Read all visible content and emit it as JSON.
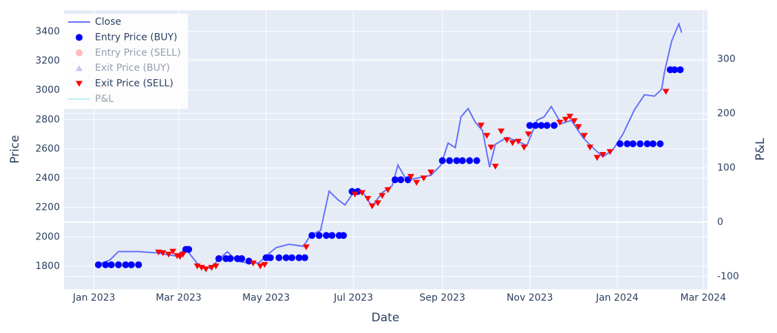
{
  "chart_data": {
    "type": "line",
    "x_label": "Date",
    "y_label": "Price",
    "y2_label": "P&L",
    "xlim": [
      "2022-12-11",
      "2024-03-04"
    ],
    "xticks": [
      {
        "value": "2023-01-01",
        "label": "Jan 2023"
      },
      {
        "value": "2023-03-01",
        "label": "Mar 2023"
      },
      {
        "value": "2023-05-01",
        "label": "May 2023"
      },
      {
        "value": "2023-07-01",
        "label": "Jul 2023"
      },
      {
        "value": "2023-09-01",
        "label": "Sep 2023"
      },
      {
        "value": "2023-11-01",
        "label": "Nov 2023"
      },
      {
        "value": "2024-01-01",
        "label": "Jan 2024"
      },
      {
        "value": "2024-03-01",
        "label": "Mar 2024"
      }
    ],
    "ylim": [
      1645,
      3545
    ],
    "yticks": [
      1800,
      2000,
      2200,
      2400,
      2600,
      2800,
      3000,
      3200,
      3400
    ],
    "y2lim": [
      -123,
      390
    ],
    "y2ticks": [
      -100,
      0,
      100,
      200,
      300
    ],
    "grid": true,
    "legend_position": "top-left",
    "series": [
      {
        "name": "Close",
        "color": "#636efa",
        "mode": "line",
        "visible": true,
        "x": [
          "2023-01-03",
          "2023-01-12",
          "2023-01-18",
          "2023-02-01",
          "2023-02-15",
          "2023-02-27",
          "2023-03-06",
          "2023-03-16",
          "2023-03-23",
          "2023-03-30",
          "2023-04-04",
          "2023-04-11",
          "2023-04-19",
          "2023-04-26",
          "2023-05-01",
          "2023-05-08",
          "2023-05-17",
          "2023-05-27",
          "2023-06-01",
          "2023-06-08",
          "2023-06-14",
          "2023-06-20",
          "2023-06-25",
          "2023-07-01",
          "2023-07-07",
          "2023-07-14",
          "2023-07-21",
          "2023-07-28",
          "2023-08-01",
          "2023-08-07",
          "2023-08-17",
          "2023-08-24",
          "2023-08-31",
          "2023-09-05",
          "2023-09-10",
          "2023-09-14",
          "2023-09-19",
          "2023-09-24",
          "2023-09-29",
          "2023-10-04",
          "2023-10-08",
          "2023-10-16",
          "2023-10-23",
          "2023-10-30",
          "2023-11-06",
          "2023-11-11",
          "2023-11-16",
          "2023-11-23",
          "2023-11-30",
          "2023-12-08",
          "2023-12-15",
          "2023-12-22",
          "2023-12-29",
          "2024-01-05",
          "2024-01-13",
          "2024-01-20",
          "2024-01-27",
          "2024-02-01",
          "2024-02-03",
          "2024-02-08",
          "2024-02-13",
          "2024-02-15"
        ],
        "values": [
          1810,
          1842,
          1900,
          1900,
          1890,
          1870,
          1917,
          1795,
          1786,
          1856,
          1899,
          1833,
          1823,
          1823,
          1870,
          1927,
          1950,
          1936,
          2011,
          2044,
          2312,
          2255,
          2218,
          2302,
          2312,
          2208,
          2302,
          2349,
          2490,
          2387,
          2406,
          2420,
          2490,
          2640,
          2608,
          2819,
          2875,
          2781,
          2725,
          2476,
          2631,
          2678,
          2655,
          2622,
          2795,
          2819,
          2889,
          2772,
          2795,
          2678,
          2608,
          2546,
          2594,
          2701,
          2866,
          2969,
          2960,
          3006,
          3124,
          3335,
          3453,
          3392
        ]
      },
      {
        "name": "Entry Price (BUY)",
        "color": "#0000ff",
        "mode": "circle",
        "visible": true,
        "x": [
          "2023-01-04",
          "2023-01-09",
          "2023-01-13",
          "2023-01-18",
          "2023-01-23",
          "2023-01-27",
          "2023-02-01",
          "2023-03-06",
          "2023-03-08",
          "2023-03-29",
          "2023-04-03",
          "2023-04-06",
          "2023-04-11",
          "2023-04-14",
          "2023-04-19",
          "2023-05-01",
          "2023-05-04",
          "2023-05-10",
          "2023-05-15",
          "2023-05-19",
          "2023-05-24",
          "2023-05-28",
          "2023-06-02",
          "2023-06-07",
          "2023-06-12",
          "2023-06-16",
          "2023-06-21",
          "2023-06-24",
          "2023-06-30",
          "2023-07-04",
          "2023-07-30",
          "2023-08-03",
          "2023-08-08",
          "2023-09-01",
          "2023-09-06",
          "2023-09-11",
          "2023-09-15",
          "2023-09-20",
          "2023-09-25",
          "2023-11-01",
          "2023-11-05",
          "2023-11-09",
          "2023-11-13",
          "2023-11-18",
          "2024-01-03",
          "2024-01-08",
          "2024-01-12",
          "2024-01-17",
          "2024-01-22",
          "2024-01-26",
          "2024-01-31",
          "2024-02-07",
          "2024-02-10",
          "2024-02-14"
        ],
        "values": [
          1810,
          1810,
          1810,
          1810,
          1810,
          1810,
          1810,
          1915,
          1915,
          1852,
          1852,
          1852,
          1852,
          1852,
          1835,
          1858,
          1858,
          1858,
          1858,
          1858,
          1858,
          1858,
          2010,
          2010,
          2010,
          2010,
          2010,
          2010,
          2310,
          2310,
          2390,
          2390,
          2390,
          2520,
          2520,
          2520,
          2520,
          2520,
          2520,
          2760,
          2760,
          2760,
          2760,
          2760,
          2635,
          2635,
          2635,
          2635,
          2635,
          2635,
          2635,
          3140,
          3140,
          3140
        ]
      },
      {
        "name": "Entry Price (SELL)",
        "color": "#fa8072",
        "mode": "circle",
        "visible": false,
        "x": [],
        "values": []
      },
      {
        "name": "Exit Price (BUY)",
        "color": "#8a8ee6",
        "mode": "triangle-up",
        "visible": false,
        "x": [],
        "values": []
      },
      {
        "name": "Exit Price (SELL)",
        "color": "#ff0000",
        "mode": "triangle-down",
        "visible": true,
        "x": [
          "2023-02-15",
          "2023-02-18",
          "2023-02-22",
          "2023-02-25",
          "2023-02-28",
          "2023-03-02",
          "2023-03-04",
          "2023-03-14",
          "2023-03-17",
          "2023-03-20",
          "2023-03-24",
          "2023-03-27",
          "2023-04-22",
          "2023-04-27",
          "2023-04-30",
          "2023-05-29",
          "2023-07-02",
          "2023-07-07",
          "2023-07-11",
          "2023-07-14",
          "2023-07-18",
          "2023-07-21",
          "2023-07-25",
          "2023-08-10",
          "2023-08-14",
          "2023-08-19",
          "2023-08-24",
          "2023-09-28",
          "2023-10-02",
          "2023-10-05",
          "2023-10-08",
          "2023-10-12",
          "2023-10-16",
          "2023-10-20",
          "2023-10-24",
          "2023-10-28",
          "2023-10-31",
          "2023-11-22",
          "2023-11-26",
          "2023-11-29",
          "2023-12-02",
          "2023-12-05",
          "2023-12-09",
          "2023-12-13",
          "2023-12-18",
          "2023-12-22",
          "2023-12-27",
          "2024-02-04"
        ],
        "values": [
          1895,
          1890,
          1880,
          1900,
          1870,
          1865,
          1880,
          1800,
          1790,
          1780,
          1790,
          1800,
          1820,
          1800,
          1810,
          1930,
          2290,
          2300,
          2260,
          2210,
          2230,
          2280,
          2320,
          2410,
          2370,
          2400,
          2440,
          2760,
          2690,
          2610,
          2480,
          2720,
          2660,
          2640,
          2650,
          2610,
          2700,
          2780,
          2800,
          2820,
          2790,
          2750,
          2690,
          2610,
          2540,
          2560,
          2580,
          2990
        ]
      },
      {
        "name": "P&L",
        "color": "#7fdfef",
        "mode": "line",
        "axis": "y2",
        "visible": false,
        "x": [],
        "values": []
      }
    ]
  }
}
